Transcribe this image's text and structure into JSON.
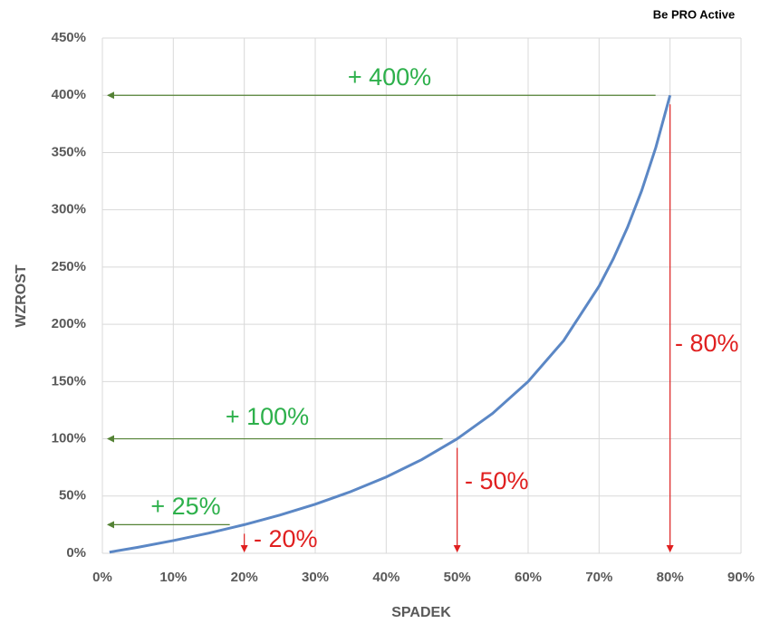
{
  "chart_data": {
    "type": "line",
    "title": "Be PRO Active",
    "x_label": "SPADEK",
    "y_label": "WZROST",
    "x": [
      1,
      5,
      10,
      15,
      20,
      25,
      30,
      35,
      40,
      45,
      50,
      55,
      60,
      65,
      70,
      72,
      74,
      76,
      78,
      80
    ],
    "series": [
      {
        "name": "WZROST",
        "color": "#5b87c5",
        "values": [
          1.01,
          5.26,
          11.11,
          17.65,
          25,
          33.33,
          42.86,
          53.85,
          66.67,
          81.82,
          100,
          122.22,
          150,
          185.71,
          233.33,
          257.14,
          284.62,
          316.67,
          354.55,
          400
        ]
      }
    ],
    "xlim": [
      0,
      90
    ],
    "ylim": [
      0,
      450
    ],
    "xticks": [
      {
        "value": 0,
        "label": "0%"
      },
      {
        "value": 10,
        "label": "10%"
      },
      {
        "value": 20,
        "label": "20%"
      },
      {
        "value": 30,
        "label": "30%"
      },
      {
        "value": 40,
        "label": "40%"
      },
      {
        "value": 50,
        "label": "50%"
      },
      {
        "value": 60,
        "label": "60%"
      },
      {
        "value": 70,
        "label": "70%"
      },
      {
        "value": 80,
        "label": "80%"
      },
      {
        "value": 90,
        "label": "90%"
      }
    ],
    "yticks": [
      {
        "value": 0,
        "label": "0%"
      },
      {
        "value": 50,
        "label": "50%"
      },
      {
        "value": 100,
        "label": "100%"
      },
      {
        "value": 150,
        "label": "150%"
      },
      {
        "value": 200,
        "label": "200%"
      },
      {
        "value": 250,
        "label": "250%"
      },
      {
        "value": 300,
        "label": "300%"
      },
      {
        "value": 350,
        "label": "350%"
      },
      {
        "value": 400,
        "label": "400%"
      },
      {
        "value": 450,
        "label": "450%"
      }
    ],
    "grid": true,
    "gain_annotations": {
      "color": "#2db04b",
      "arrow_color": "#548235",
      "items": [
        {
          "text": "+ 400%",
          "value": 400
        },
        {
          "text": "+ 100%",
          "value": 100
        },
        {
          "text": "+ 25%",
          "value": 25
        }
      ]
    },
    "loss_annotations": {
      "color": "#e02020",
      "items": [
        {
          "text": "- 80%",
          "value": 80
        },
        {
          "text": "- 50%",
          "value": 50
        },
        {
          "text": "- 20%",
          "value": 20
        }
      ]
    }
  }
}
